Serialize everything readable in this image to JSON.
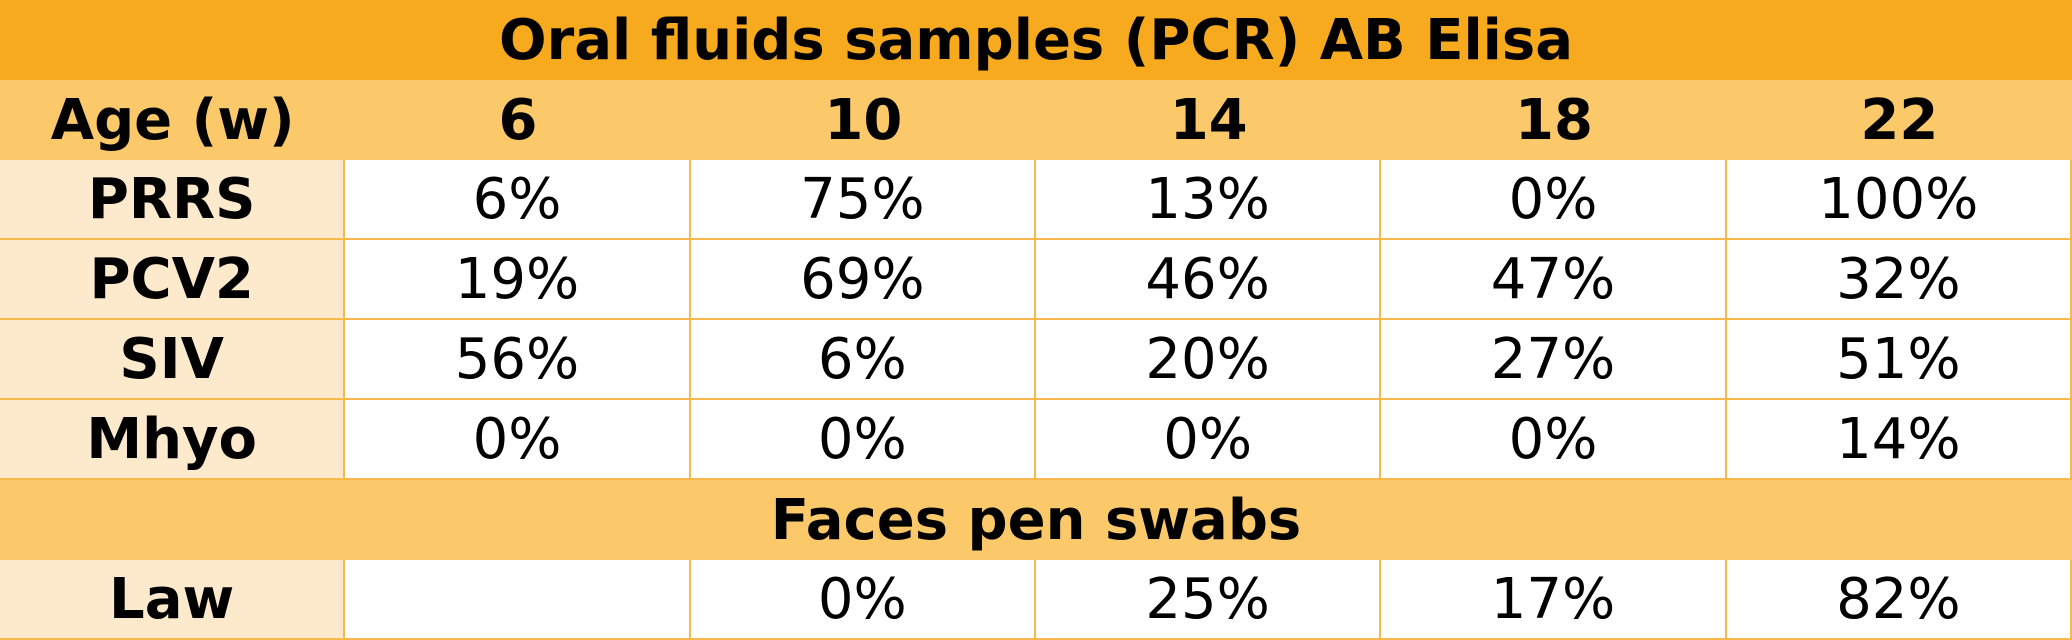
{
  "table": {
    "title": "Oral fluids samples (PCR) AB Elisa",
    "header": [
      "Age (w)",
      "6",
      "10",
      "14",
      "18",
      "22"
    ],
    "rows": [
      [
        "PRRS",
        "6%",
        "75%",
        "13%",
        "0%",
        "100%"
      ],
      [
        "PCV2",
        "19%",
        "69%",
        "46%",
        "47%",
        "32%"
      ],
      [
        "SIV",
        "56%",
        "6%",
        "20%",
        "27%",
        "51%"
      ],
      [
        "Mhyo",
        "0%",
        "0%",
        "0%",
        "0%",
        "14%"
      ]
    ],
    "subtitle": "Faces pen swabs",
    "rows2": [
      [
        "Law",
        null,
        "0%",
        "25%",
        "17%",
        "82%"
      ]
    ]
  }
}
